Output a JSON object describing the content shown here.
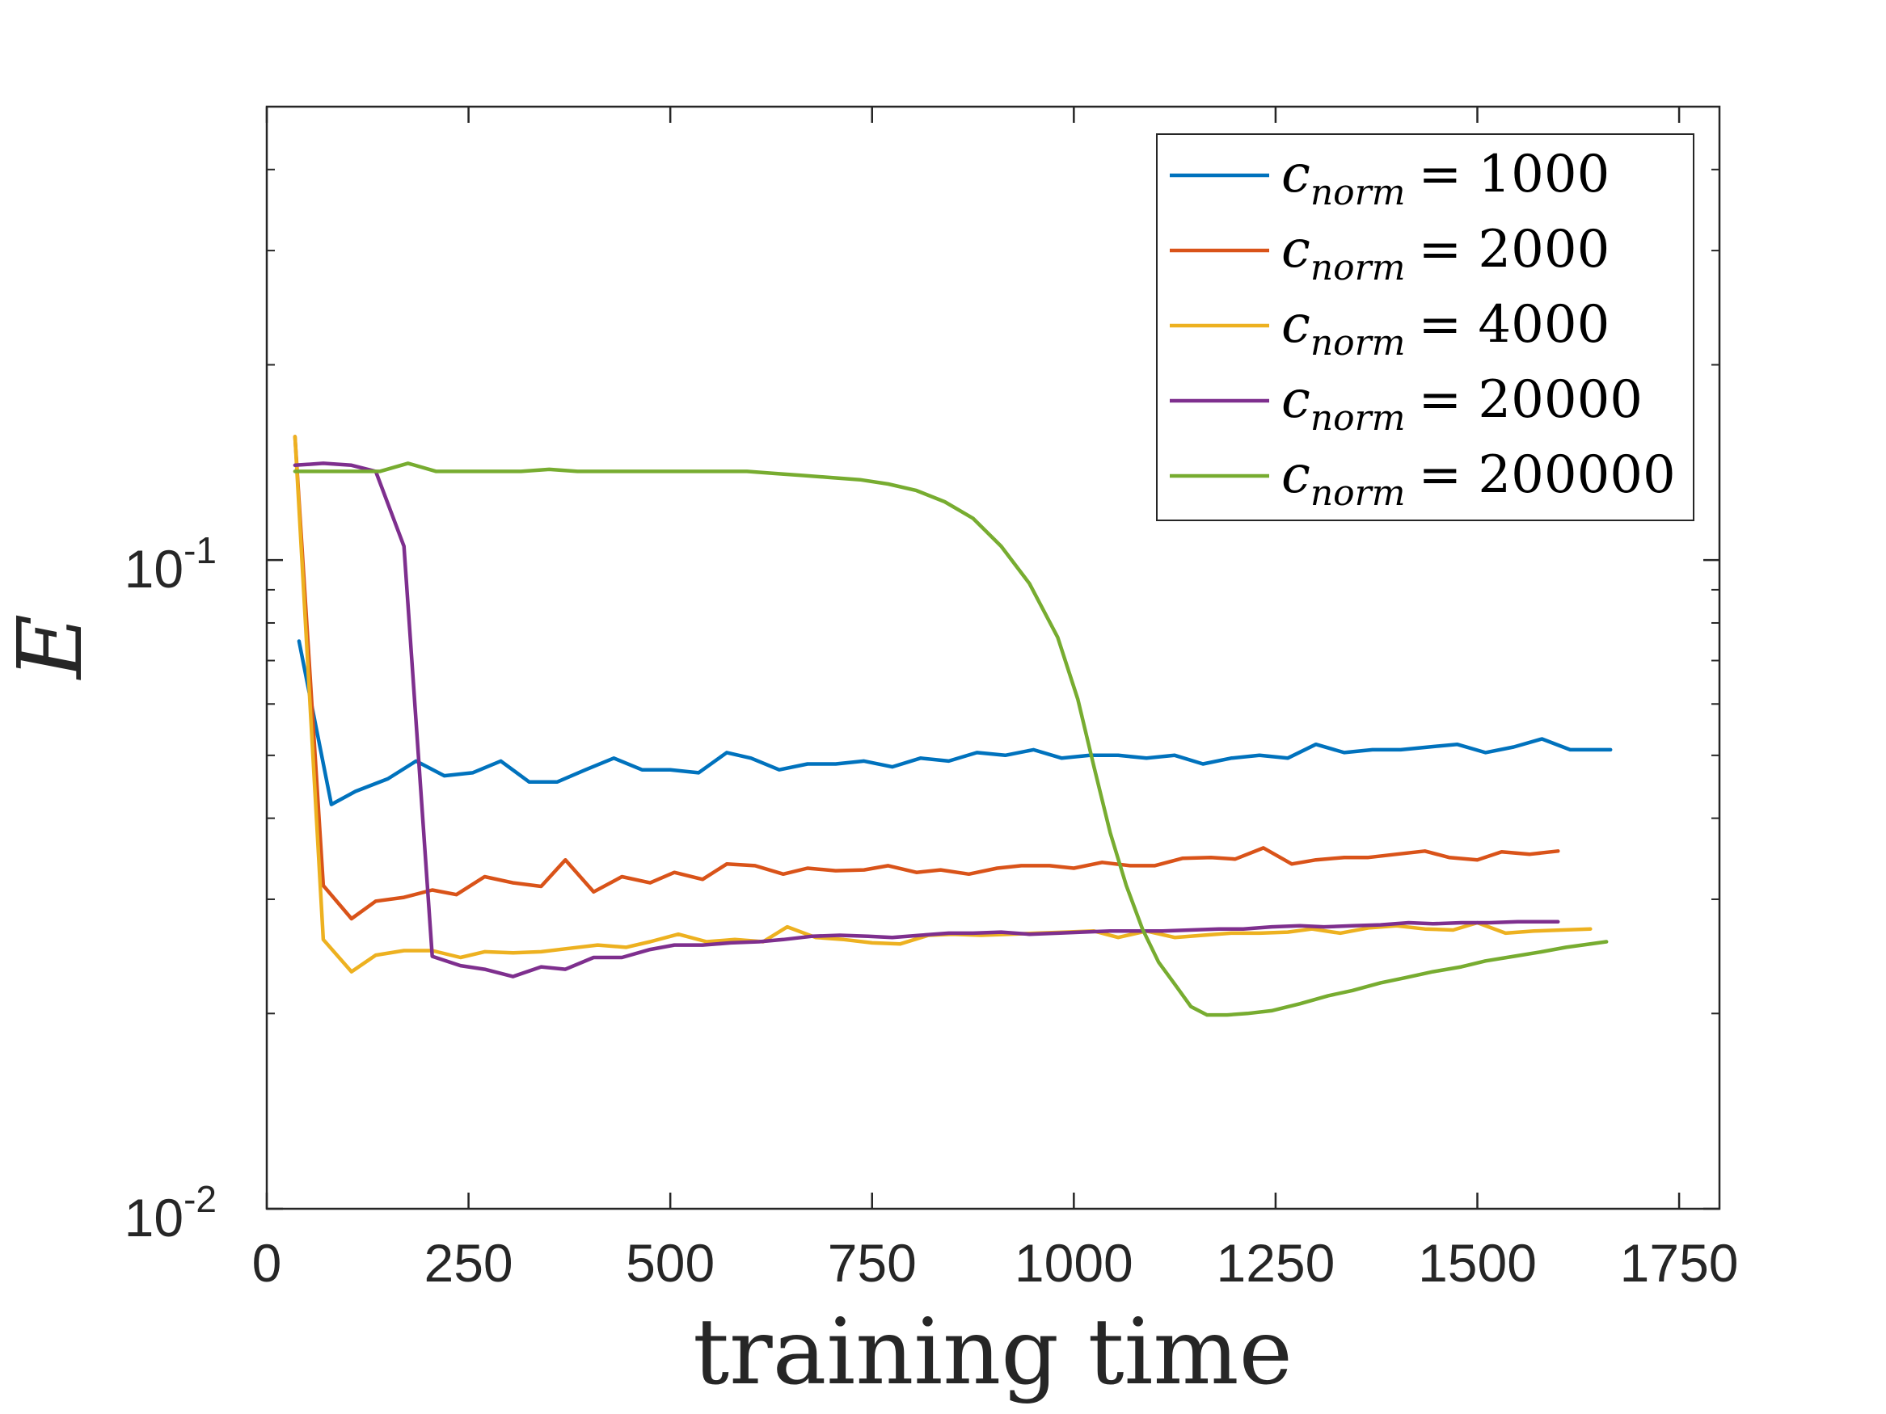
{
  "chart_data": {
    "type": "line",
    "title": "",
    "xlabel": "training time",
    "ylabel": "E",
    "xlim": [
      0,
      1800
    ],
    "ylim": [
      0.01,
      0.5
    ],
    "yscale": "log",
    "xticks": [
      0,
      250,
      500,
      750,
      1000,
      1250,
      1500,
      1750
    ],
    "xtick_labels": [
      "0",
      "250",
      "500",
      "750",
      "1000",
      "1250",
      "1500",
      "1750"
    ],
    "yticks": [
      {
        "value": 0.01,
        "base": "10",
        "exp": "-2"
      },
      {
        "value": 0.1,
        "base": "10",
        "exp": "-1"
      }
    ],
    "legend_placement": "top-right",
    "series": [
      {
        "name": "c_norm = 1000",
        "legend_base": "c",
        "legend_sub": "norm",
        "legend_rest": "= 1000",
        "color": "#0072BD",
        "x": [
          40,
          80,
          110,
          150,
          185,
          220,
          255,
          290,
          325,
          360,
          395,
          430,
          465,
          500,
          535,
          570,
          600,
          635,
          670,
          705,
          740,
          775,
          810,
          845,
          880,
          915,
          950,
          985,
          1020,
          1055,
          1090,
          1125,
          1160,
          1195,
          1230,
          1265,
          1300,
          1335,
          1370,
          1405,
          1440,
          1475,
          1510,
          1545,
          1580,
          1615,
          1665
        ],
        "y": [
          0.075,
          0.042,
          0.044,
          0.046,
          0.049,
          0.0465,
          0.047,
          0.049,
          0.0455,
          0.0455,
          0.0475,
          0.0495,
          0.0475,
          0.0475,
          0.047,
          0.0505,
          0.0495,
          0.0475,
          0.0485,
          0.0485,
          0.049,
          0.048,
          0.0495,
          0.049,
          0.0505,
          0.05,
          0.051,
          0.0495,
          0.05,
          0.05,
          0.0495,
          0.05,
          0.0485,
          0.0495,
          0.05,
          0.0495,
          0.052,
          0.0505,
          0.051,
          0.051,
          0.0515,
          0.052,
          0.0505,
          0.0515,
          0.053,
          0.051,
          0.051
        ]
      },
      {
        "name": "c_norm = 2000",
        "legend_base": "c",
        "legend_sub": "norm",
        "legend_rest": "= 2000",
        "color": "#D95319",
        "x": [
          35,
          70,
          105,
          135,
          170,
          205,
          235,
          270,
          305,
          340,
          370,
          405,
          440,
          475,
          505,
          540,
          570,
          605,
          640,
          670,
          705,
          740,
          770,
          805,
          835,
          870,
          905,
          935,
          970,
          1000,
          1035,
          1070,
          1100,
          1135,
          1170,
          1200,
          1235,
          1270,
          1300,
          1335,
          1365,
          1400,
          1435,
          1465,
          1500,
          1530,
          1565,
          1600
        ],
        "y": [
          0.155,
          0.0315,
          0.028,
          0.0298,
          0.0302,
          0.031,
          0.0305,
          0.0325,
          0.0318,
          0.0314,
          0.0345,
          0.0308,
          0.0325,
          0.0318,
          0.033,
          0.0322,
          0.034,
          0.0338,
          0.0328,
          0.0335,
          0.0332,
          0.0333,
          0.0338,
          0.033,
          0.0333,
          0.0328,
          0.0335,
          0.0338,
          0.0338,
          0.0335,
          0.0342,
          0.0338,
          0.0338,
          0.0347,
          0.0348,
          0.0346,
          0.036,
          0.034,
          0.0345,
          0.0348,
          0.0348,
          0.0352,
          0.0356,
          0.0348,
          0.0345,
          0.0355,
          0.0352,
          0.0356
        ]
      },
      {
        "name": "c_norm = 4000",
        "legend_base": "c",
        "legend_sub": "norm",
        "legend_rest": "= 4000",
        "color": "#EDB120",
        "x": [
          35,
          70,
          105,
          135,
          170,
          205,
          240,
          270,
          305,
          340,
          375,
          410,
          445,
          475,
          510,
          545,
          580,
          615,
          645,
          680,
          715,
          750,
          785,
          820,
          850,
          885,
          920,
          955,
          990,
          1025,
          1055,
          1090,
          1125,
          1160,
          1195,
          1230,
          1265,
          1295,
          1330,
          1365,
          1400,
          1435,
          1470,
          1500,
          1535,
          1570,
          1605,
          1640
        ],
        "y": [
          0.155,
          0.026,
          0.0232,
          0.0246,
          0.025,
          0.025,
          0.0244,
          0.0249,
          0.0248,
          0.0249,
          0.0252,
          0.0255,
          0.0253,
          0.0258,
          0.0265,
          0.0258,
          0.026,
          0.0258,
          0.0272,
          0.0262,
          0.026,
          0.0257,
          0.0256,
          0.0264,
          0.0265,
          0.0264,
          0.0265,
          0.0266,
          0.0267,
          0.0268,
          0.0262,
          0.0268,
          0.0262,
          0.0264,
          0.0266,
          0.0266,
          0.0267,
          0.027,
          0.0266,
          0.0271,
          0.0273,
          0.027,
          0.0269,
          0.0276,
          0.0266,
          0.0268,
          0.0269,
          0.027
        ]
      },
      {
        "name": "c_norm = 20000",
        "legend_base": "c",
        "legend_sub": "norm",
        "legend_rest": "= 20000",
        "color": "#7E2F8E",
        "x": [
          35,
          70,
          105,
          135,
          170,
          205,
          240,
          270,
          305,
          340,
          370,
          405,
          440,
          475,
          505,
          540,
          575,
          610,
          640,
          675,
          710,
          745,
          775,
          810,
          845,
          875,
          910,
          945,
          980,
          1010,
          1045,
          1080,
          1110,
          1145,
          1180,
          1210,
          1245,
          1280,
          1310,
          1345,
          1380,
          1415,
          1445,
          1480,
          1515,
          1550,
          1580,
          1600
        ],
        "y": [
          0.14,
          0.141,
          0.14,
          0.137,
          0.105,
          0.0245,
          0.0237,
          0.0234,
          0.0228,
          0.0236,
          0.0234,
          0.0244,
          0.0244,
          0.0251,
          0.0255,
          0.0255,
          0.0257,
          0.0258,
          0.026,
          0.0263,
          0.0264,
          0.0263,
          0.0262,
          0.0264,
          0.0266,
          0.0266,
          0.0267,
          0.0265,
          0.0266,
          0.0267,
          0.0268,
          0.0268,
          0.0268,
          0.0269,
          0.027,
          0.027,
          0.0272,
          0.0273,
          0.0272,
          0.0273,
          0.0274,
          0.0276,
          0.0275,
          0.0276,
          0.0276,
          0.0277,
          0.0277,
          0.0277
        ]
      },
      {
        "name": "c_norm = 200000",
        "legend_base": "c",
        "legend_sub": "norm",
        "legend_rest": "= 200000",
        "color": "#77AC30",
        "x": [
          35,
          70,
          105,
          140,
          175,
          210,
          245,
          280,
          315,
          350,
          385,
          420,
          455,
          490,
          525,
          560,
          595,
          630,
          665,
          700,
          735,
          770,
          805,
          840,
          875,
          910,
          945,
          980,
          1005,
          1025,
          1045,
          1065,
          1085,
          1105,
          1125,
          1145,
          1165,
          1190,
          1215,
          1245,
          1280,
          1315,
          1345,
          1380,
          1410,
          1445,
          1480,
          1510,
          1545,
          1580,
          1610,
          1660
        ],
        "y": [
          0.137,
          0.137,
          0.137,
          0.137,
          0.141,
          0.137,
          0.137,
          0.137,
          0.137,
          0.138,
          0.137,
          0.137,
          0.137,
          0.137,
          0.137,
          0.137,
          0.137,
          0.136,
          0.135,
          0.134,
          0.133,
          0.131,
          0.128,
          0.123,
          0.116,
          0.105,
          0.092,
          0.076,
          0.061,
          0.048,
          0.038,
          0.0315,
          0.027,
          0.024,
          0.0222,
          0.0205,
          0.0199,
          0.0199,
          0.02,
          0.0202,
          0.0207,
          0.0213,
          0.0217,
          0.0223,
          0.0227,
          0.0232,
          0.0236,
          0.0241,
          0.0245,
          0.0249,
          0.0253,
          0.0258
        ]
      }
    ]
  }
}
